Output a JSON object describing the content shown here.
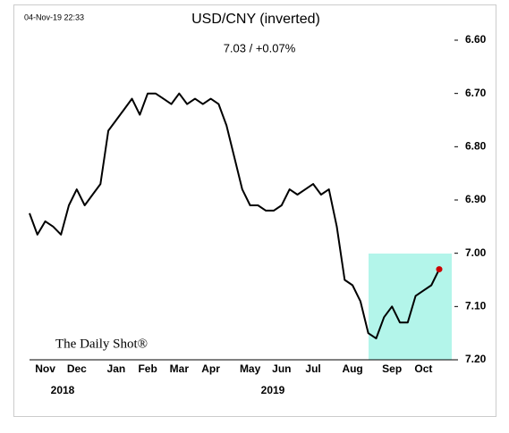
{
  "chart_data": {
    "type": "line",
    "timestamp": "04-Nov-19 22:33",
    "title": "USD/CNY (inverted)",
    "subtitle": "7.03  /  +0.07%",
    "watermark": "The Daily Shot®",
    "categories": [
      null,
      null,
      "Nov",
      null,
      null,
      null,
      "Dec",
      null,
      null,
      null,
      null,
      "Jan",
      null,
      null,
      null,
      "Feb",
      null,
      null,
      null,
      "Mar",
      null,
      null,
      null,
      "Apr",
      null,
      null,
      null,
      null,
      "May",
      null,
      null,
      null,
      "Jun",
      null,
      null,
      null,
      "Jul",
      null,
      null,
      null,
      null,
      "Aug",
      null,
      null,
      null,
      null,
      "Sep",
      null,
      null,
      null,
      "Oct",
      null,
      null
    ],
    "values": [
      6.925,
      6.965,
      6.94,
      6.95,
      6.965,
      6.91,
      6.88,
      6.91,
      6.89,
      6.87,
      6.77,
      6.75,
      6.73,
      6.71,
      6.74,
      6.7,
      6.7,
      6.71,
      6.72,
      6.7,
      6.72,
      6.71,
      6.72,
      6.71,
      6.72,
      6.76,
      6.82,
      6.88,
      6.91,
      6.91,
      6.92,
      6.92,
      6.91,
      6.88,
      6.89,
      6.88,
      6.87,
      6.89,
      6.88,
      6.95,
      7.05,
      7.06,
      7.09,
      7.15,
      7.16,
      7.12,
      7.1,
      7.13,
      7.13,
      7.08,
      7.07,
      7.06,
      7.03
    ],
    "years": [
      "2018",
      "2019"
    ],
    "color": "#000000",
    "last_point_color": "#cc0000",
    "inverted": true,
    "ylim": [
      6.6,
      7.2
    ],
    "yticks": [
      {
        "value": 6.6,
        "label": "6.60"
      },
      {
        "value": 6.7,
        "label": "6.70"
      },
      {
        "value": 6.8,
        "label": "6.80"
      },
      {
        "value": 6.9,
        "label": "6.90"
      },
      {
        "value": 7.0,
        "label": "7.00"
      },
      {
        "value": 7.1,
        "label": "7.10"
      },
      {
        "value": 7.2,
        "label": "7.20"
      }
    ],
    "grid": false
  }
}
